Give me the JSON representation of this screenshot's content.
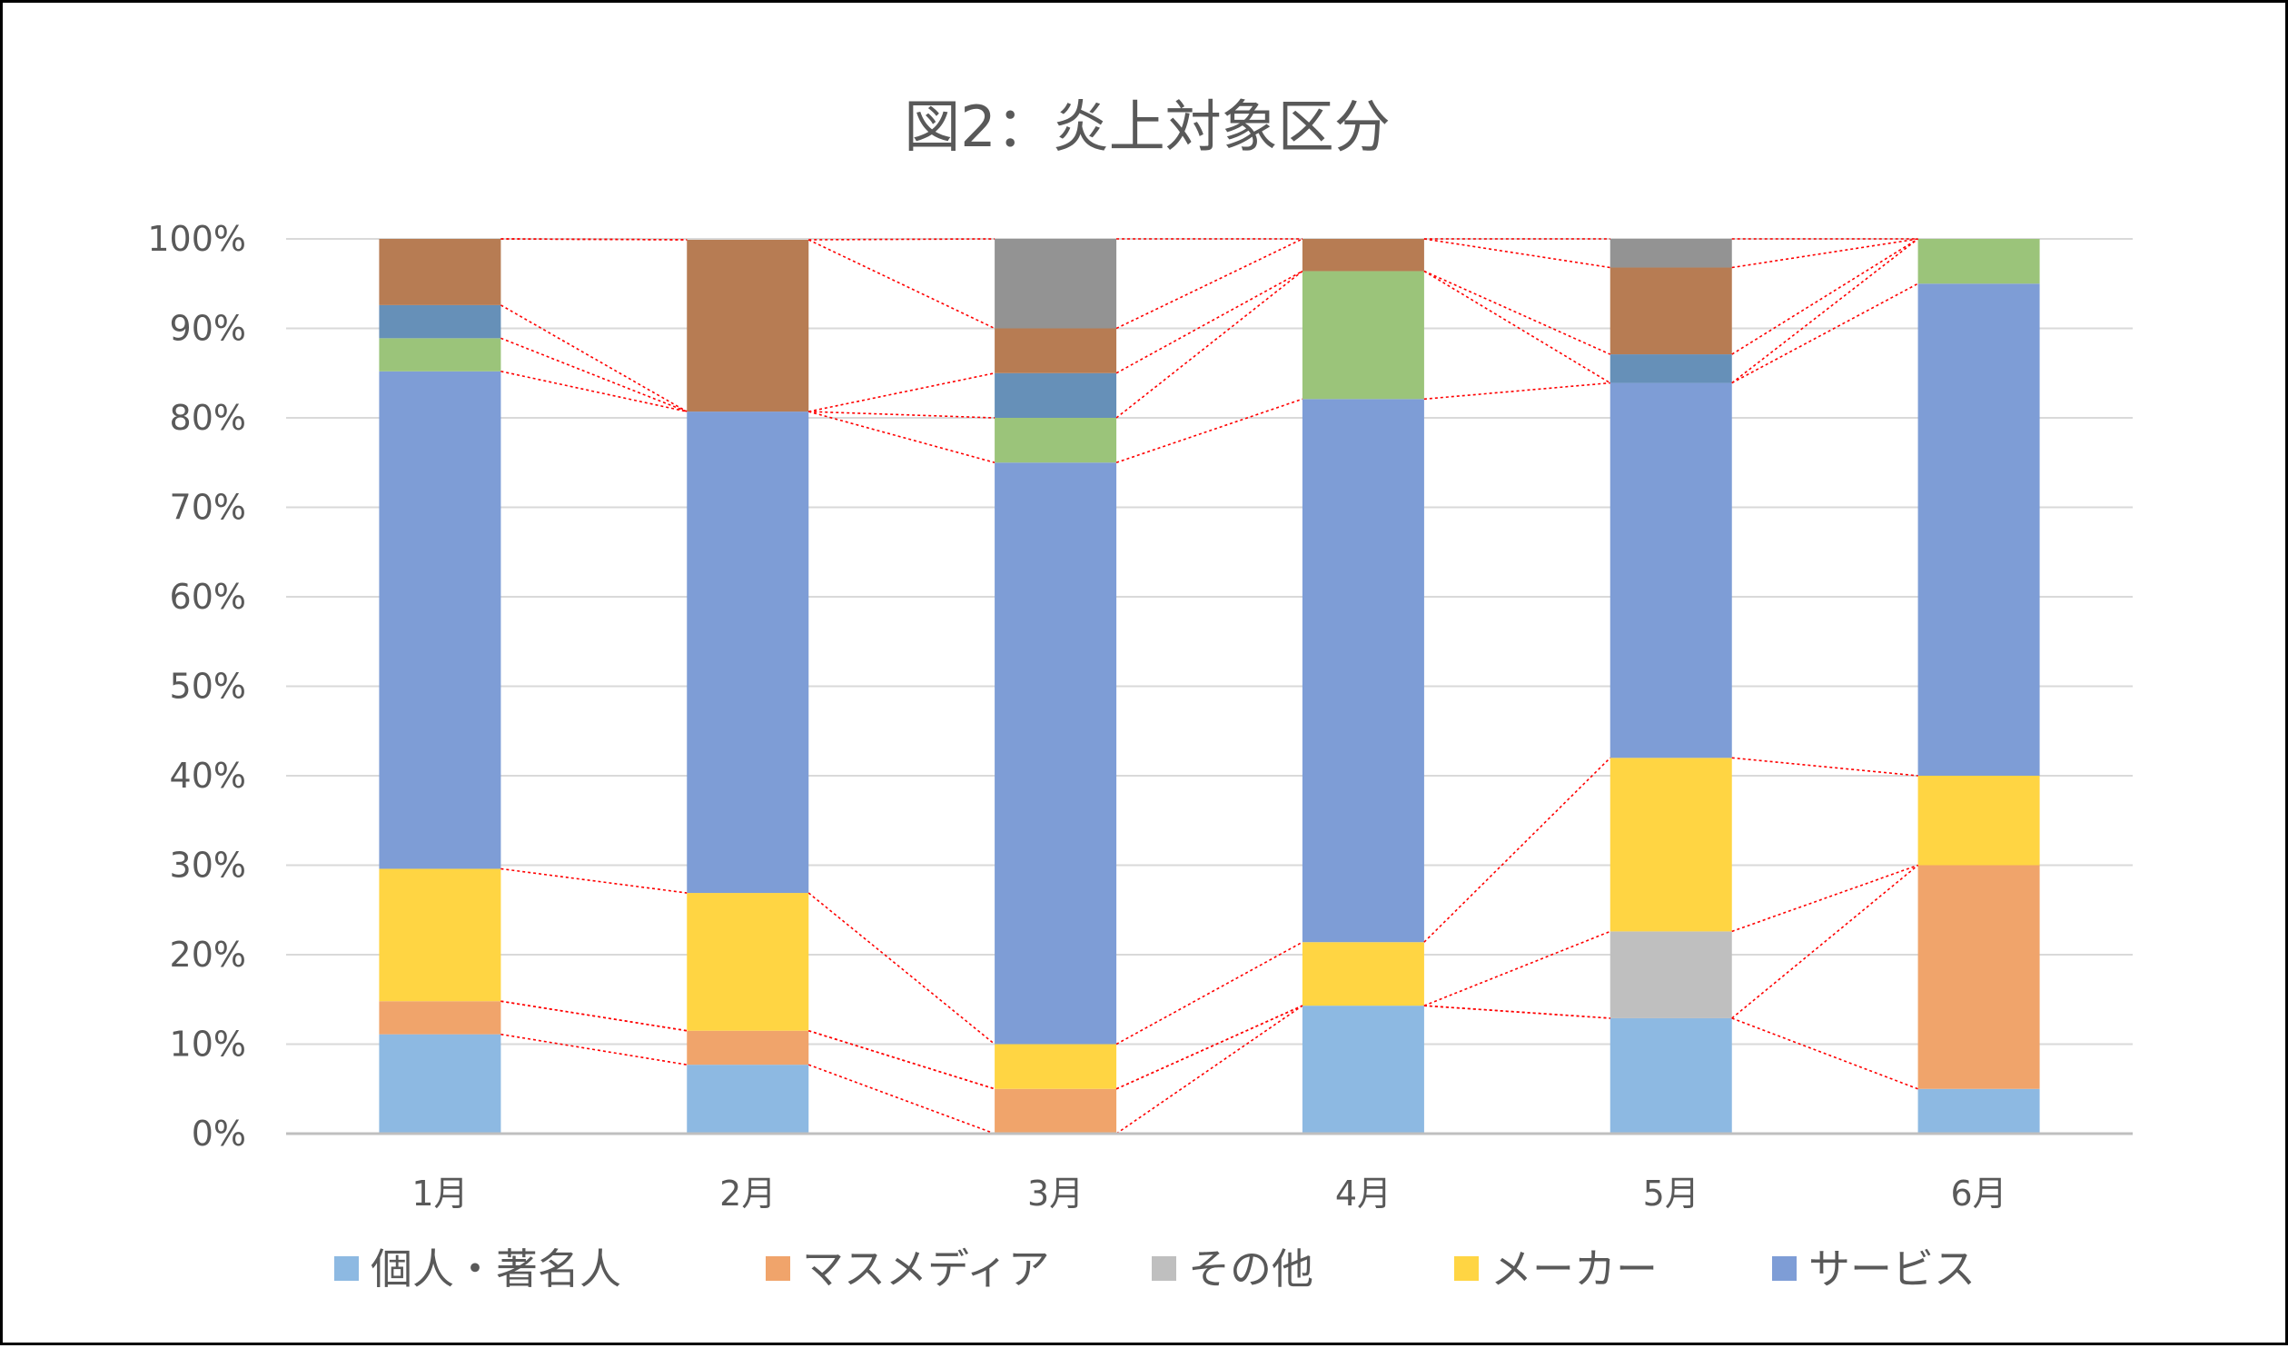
{
  "chart_data": {
    "type": "bar",
    "stacked": true,
    "title": "図2：炎上対象区分",
    "xlabel": "",
    "ylabel": "",
    "categories": [
      "1月",
      "2月",
      "3月",
      "4月",
      "5月",
      "6月"
    ],
    "ylim": [
      0,
      100
    ],
    "yticks": [
      0,
      10,
      20,
      30,
      40,
      50,
      60,
      70,
      80,
      90,
      100
    ],
    "ytick_labels": [
      "0%",
      "10%",
      "20%",
      "30%",
      "40%",
      "50%",
      "60%",
      "70%",
      "80%",
      "90%",
      "100%"
    ],
    "grid": true,
    "legend_position": "bottom",
    "connector_lines": true,
    "series": [
      {
        "name": "個人・著名人",
        "in_legend": true,
        "color": "#8db9e2",
        "values": [
          11.1,
          7.7,
          0,
          14.3,
          12.9,
          5.0
        ]
      },
      {
        "name": "マスメディア",
        "in_legend": true,
        "color": "#f0a46b",
        "values": [
          3.7,
          3.8,
          5.0,
          0,
          0,
          25.0
        ]
      },
      {
        "name": "その他",
        "in_legend": true,
        "color": "#bfbfbf",
        "values": [
          0,
          0,
          0,
          0,
          9.7,
          0
        ]
      },
      {
        "name": "メーカー",
        "in_legend": true,
        "color": "#ffd543",
        "values": [
          14.8,
          15.4,
          5.0,
          7.1,
          19.4,
          10.0
        ]
      },
      {
        "name": "サービス",
        "in_legend": true,
        "color": "#7e9dd6",
        "values": [
          55.6,
          53.8,
          65.0,
          60.7,
          41.9,
          55.0
        ]
      },
      {
        "name": "",
        "in_legend": false,
        "color": "#9bc47a",
        "values": [
          3.7,
          0,
          5.0,
          14.3,
          0,
          5.0
        ]
      },
      {
        "name": "",
        "in_legend": false,
        "color": "#6690b8",
        "values": [
          3.7,
          0,
          5.0,
          0,
          3.2,
          0
        ]
      },
      {
        "name": "",
        "in_legend": false,
        "color": "#b77c53",
        "values": [
          7.4,
          19.2,
          5.0,
          3.6,
          9.7,
          0
        ]
      },
      {
        "name": "",
        "in_legend": false,
        "color": "#939393",
        "values": [
          0,
          0,
          10.0,
          0,
          3.2,
          0
        ]
      }
    ]
  },
  "colors": {
    "connector": "#ff0000",
    "gridline": "#d9d9d9",
    "axis": "#bfbfbf",
    "text": "#595959",
    "border": "#000000"
  }
}
